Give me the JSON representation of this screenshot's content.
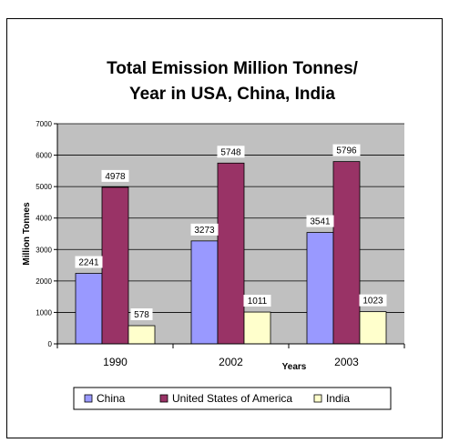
{
  "chart_data": {
    "type": "bar",
    "title_lines": [
      "Total Emission Million Tonnes/",
      "Year in USA, China, India"
    ],
    "xlabel": "Years",
    "ylabel": "Million Tonnes",
    "categories": [
      "1990",
      "2002",
      "2003"
    ],
    "series": [
      {
        "name": "China",
        "values": [
          2241,
          3273,
          3541
        ],
        "color": "#9999ff"
      },
      {
        "name": "United States of America",
        "values": [
          4978,
          5748,
          5796
        ],
        "color": "#993366"
      },
      {
        "name": "India",
        "values": [
          578,
          1011,
          1023
        ],
        "color": "#ffffcc"
      }
    ],
    "value_labels": [
      [
        "2241",
        "3273",
        "3541"
      ],
      [
        "4978",
        "5748",
        "5796"
      ],
      [
        "578",
        "1011",
        "1023"
      ]
    ],
    "ylim": [
      0,
      7000
    ],
    "yticks": [
      0,
      1000,
      2000,
      3000,
      4000,
      5000,
      6000,
      7000
    ],
    "grid": true,
    "legend_position": "bottom",
    "plot_background": "#c0c0c0"
  }
}
